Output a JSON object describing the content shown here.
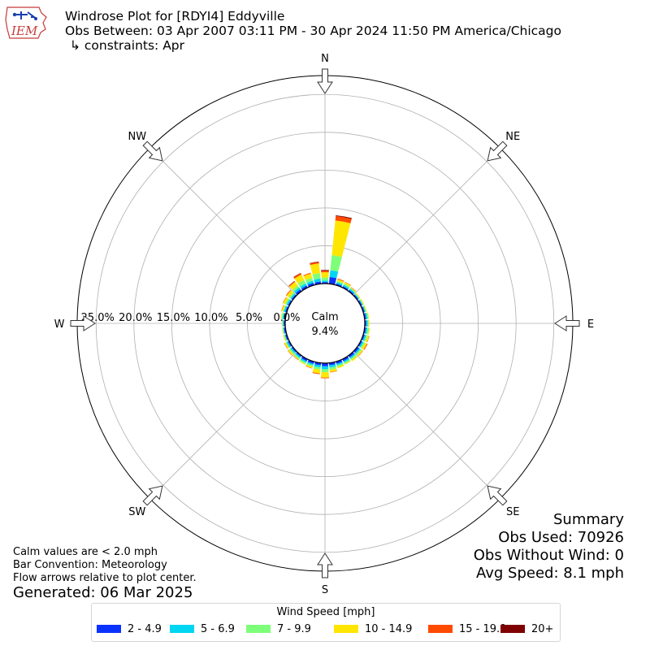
{
  "header": {
    "logo_text": "IEM",
    "title": "Windrose Plot for [RDYI4] Eddyville",
    "obs_between": "Obs Between: 03 Apr 2007 03:11 PM - 30 Apr 2024 11:50 PM America/Chicago",
    "constraints": "↳ constraints: Apr"
  },
  "summary": {
    "title": "Summary",
    "obs_used": "Obs Used: 70926",
    "obs_without_wind": "Obs Without Wind: 0",
    "avg_speed": "Avg Speed: 8.1 mph"
  },
  "notes": {
    "calm": "Calm values are < 2.0 mph",
    "bar_convention": "Bar Convention: Meteorology",
    "flow_arrows": "Flow arrows relative to plot center.",
    "generated": "Generated: 06 Mar 2025"
  },
  "chart_data": {
    "type": "windrose",
    "directions": [
      "N",
      "NE",
      "E",
      "SE",
      "S",
      "SW",
      "W",
      "NW"
    ],
    "radial_ticks": [
      "0.0%",
      "5.0%",
      "10.0%",
      "15.0%",
      "20.0%",
      "25.0%"
    ],
    "radial_tick_values": [
      0,
      5,
      10,
      15,
      20,
      25
    ],
    "rmax": 27.5,
    "calm_label": "Calm",
    "calm_value": "9.4%",
    "legend_title": "Wind Speed [mph]",
    "bin_labels": [
      "2 - 4.9",
      "5 - 6.9",
      "7 - 9.9",
      "10 - 14.9",
      "15 - 19.9",
      "20+"
    ],
    "bin_colors": [
      "#0a32ff",
      "#00d5f2",
      "#7dff7a",
      "#ffe600",
      "#ff4a00",
      "#7f0000"
    ],
    "sector_width_deg": 10,
    "sectors": [
      {
        "dir": 0,
        "values": [
          0.2,
          0.2,
          0.4,
          0.7,
          0.2,
          0.1
        ]
      },
      {
        "dir": 10,
        "values": [
          0.9,
          0.9,
          2.0,
          4.6,
          0.6,
          0.1
        ]
      },
      {
        "dir": 20,
        "values": [
          0.2,
          0.2,
          0.2,
          0.2,
          0.1,
          0.0
        ]
      },
      {
        "dir": 30,
        "values": [
          0.2,
          0.2,
          0.2,
          0.2,
          0.05,
          0.0
        ]
      },
      {
        "dir": 40,
        "values": [
          0.2,
          0.2,
          0.1,
          0.1,
          0.05,
          0.0
        ]
      },
      {
        "dir": 50,
        "values": [
          0.2,
          0.1,
          0.1,
          0.1,
          0.0,
          0.0
        ]
      },
      {
        "dir": 60,
        "values": [
          0.2,
          0.1,
          0.1,
          0.1,
          0.0,
          0.0
        ]
      },
      {
        "dir": 70,
        "values": [
          0.2,
          0.1,
          0.1,
          0.1,
          0.0,
          0.0
        ]
      },
      {
        "dir": 80,
        "values": [
          0.2,
          0.2,
          0.1,
          0.1,
          0.0,
          0.0
        ]
      },
      {
        "dir": 90,
        "values": [
          0.2,
          0.2,
          0.1,
          0.1,
          0.0,
          0.0
        ]
      },
      {
        "dir": 100,
        "values": [
          0.2,
          0.2,
          0.2,
          0.1,
          0.0,
          0.0
        ]
      },
      {
        "dir": 110,
        "values": [
          0.2,
          0.2,
          0.2,
          0.2,
          0.05,
          0.0
        ]
      },
      {
        "dir": 120,
        "values": [
          0.2,
          0.2,
          0.2,
          0.3,
          0.1,
          0.0
        ]
      },
      {
        "dir": 130,
        "values": [
          0.3,
          0.2,
          0.2,
          0.2,
          0.05,
          0.0
        ]
      },
      {
        "dir": 140,
        "values": [
          0.3,
          0.2,
          0.2,
          0.2,
          0.0,
          0.0
        ]
      },
      {
        "dir": 150,
        "values": [
          0.3,
          0.2,
          0.2,
          0.1,
          0.0,
          0.0
        ]
      },
      {
        "dir": 160,
        "values": [
          0.3,
          0.2,
          0.2,
          0.2,
          0.0,
          0.0
        ]
      },
      {
        "dir": 170,
        "values": [
          0.3,
          0.3,
          0.3,
          0.3,
          0.05,
          0.0
        ]
      },
      {
        "dir": 180,
        "values": [
          0.4,
          0.4,
          0.4,
          0.7,
          0.1,
          0.0
        ]
      },
      {
        "dir": 190,
        "values": [
          0.3,
          0.3,
          0.3,
          0.5,
          0.1,
          0.0
        ]
      },
      {
        "dir": 200,
        "values": [
          0.3,
          0.2,
          0.2,
          0.2,
          0.05,
          0.0
        ]
      },
      {
        "dir": 210,
        "values": [
          0.3,
          0.2,
          0.2,
          0.1,
          0.0,
          0.0
        ]
      },
      {
        "dir": 220,
        "values": [
          0.2,
          0.2,
          0.2,
          0.1,
          0.05,
          0.0
        ]
      },
      {
        "dir": 230,
        "values": [
          0.2,
          0.2,
          0.2,
          0.2,
          0.05,
          0.0
        ]
      },
      {
        "dir": 240,
        "values": [
          0.2,
          0.2,
          0.1,
          0.2,
          0.05,
          0.0
        ]
      },
      {
        "dir": 250,
        "values": [
          0.2,
          0.1,
          0.1,
          0.1,
          0.0,
          0.0
        ]
      },
      {
        "dir": 260,
        "values": [
          0.2,
          0.1,
          0.1,
          0.05,
          0.0,
          0.0
        ]
      },
      {
        "dir": 270,
        "values": [
          0.2,
          0.1,
          0.1,
          0.05,
          0.0,
          0.0
        ]
      },
      {
        "dir": 280,
        "values": [
          0.2,
          0.2,
          0.1,
          0.1,
          0.0,
          0.0
        ]
      },
      {
        "dir": 290,
        "values": [
          0.2,
          0.2,
          0.1,
          0.2,
          0.05,
          0.0
        ]
      },
      {
        "dir": 300,
        "values": [
          0.2,
          0.2,
          0.2,
          0.3,
          0.05,
          0.0
        ]
      },
      {
        "dir": 310,
        "values": [
          0.2,
          0.2,
          0.2,
          0.4,
          0.1,
          0.0
        ]
      },
      {
        "dir": 320,
        "values": [
          0.3,
          0.3,
          0.3,
          0.6,
          0.1,
          0.05
        ]
      },
      {
        "dir": 330,
        "values": [
          0.3,
          0.3,
          0.5,
          0.8,
          0.2,
          0.05
        ]
      },
      {
        "dir": 340,
        "values": [
          0.3,
          0.3,
          0.4,
          0.6,
          0.1,
          0.0
        ]
      },
      {
        "dir": 350,
        "values": [
          0.3,
          0.4,
          0.7,
          1.3,
          0.2,
          0.05
        ]
      }
    ]
  }
}
